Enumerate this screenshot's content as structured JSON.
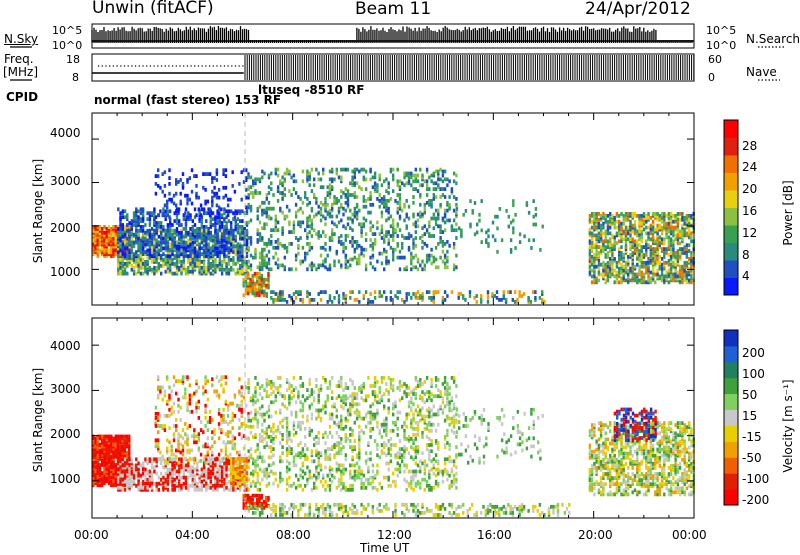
{
  "header": {
    "radar": "Unwin (fitACF)",
    "beam": "Beam 11",
    "date": "24/Apr/2012"
  },
  "left_labels": {
    "nsky": "N.Sky",
    "freq": "Freq.",
    "freq_unit": "[MHz]",
    "cpid": "CPID"
  },
  "right_labels": {
    "nsearch": "N.Search",
    "nave": "Nave"
  },
  "noise_axis": {
    "top": "10^5",
    "bottom": "10^0"
  },
  "freq_axis": {
    "left_ticks": [
      "18",
      "8"
    ],
    "right_ticks": [
      "60",
      "0"
    ]
  },
  "cpid_labels": [
    "normal (fast stereo) 153 RF",
    "ltuseq -8510 RF"
  ],
  "colors": {
    "frame": "#000000",
    "dash_line": "#bbbbbb"
  },
  "chart_data": [
    {
      "type": "heatmap",
      "name": "power",
      "ylabel": "Slant Range [km]",
      "xlabel": "",
      "x_ticks": [
        "00:00",
        "04:00",
        "08:00",
        "12:00",
        "16:00",
        "20:00",
        "00:00"
      ],
      "y_ticks": [
        "1000",
        "2000",
        "3000",
        "4000"
      ],
      "xlim_hours": [
        0,
        24
      ],
      "ylim_km": [
        180,
        4600
      ],
      "colorbar": {
        "label": "Power [dB]",
        "ticks": [
          "4",
          "8",
          "12",
          "16",
          "20",
          "24",
          "28"
        ],
        "colors": [
          "#0a1aff",
          "#2050c0",
          "#2a8a80",
          "#38a050",
          "#8cc040",
          "#e8d010",
          "#f0a000",
          "#f07000",
          "#e02010",
          "#ff0000"
        ]
      }
    },
    {
      "type": "heatmap",
      "name": "velocity",
      "ylabel": "Slant Range [km]",
      "xlabel": "Time UT",
      "x_ticks": [
        "00:00",
        "04:00",
        "08:00",
        "12:00",
        "16:00",
        "20:00",
        "00:00"
      ],
      "y_ticks": [
        "1000",
        "2000",
        "3000",
        "4000"
      ],
      "xlim_hours": [
        0,
        24
      ],
      "ylim_km": [
        180,
        4600
      ],
      "colorbar": {
        "label": "Velocity [m s⁻¹]",
        "ticks": [
          "200",
          "100",
          "50",
          "15",
          "-15",
          "-50",
          "-100",
          "-200"
        ],
        "colors": [
          "#1030c0",
          "#2060d0",
          "#208060",
          "#40a040",
          "#80d060",
          "#c8c8c8",
          "#e8d000",
          "#f0a000",
          "#f06000",
          "#e02000",
          "#ff0000"
        ]
      }
    }
  ]
}
